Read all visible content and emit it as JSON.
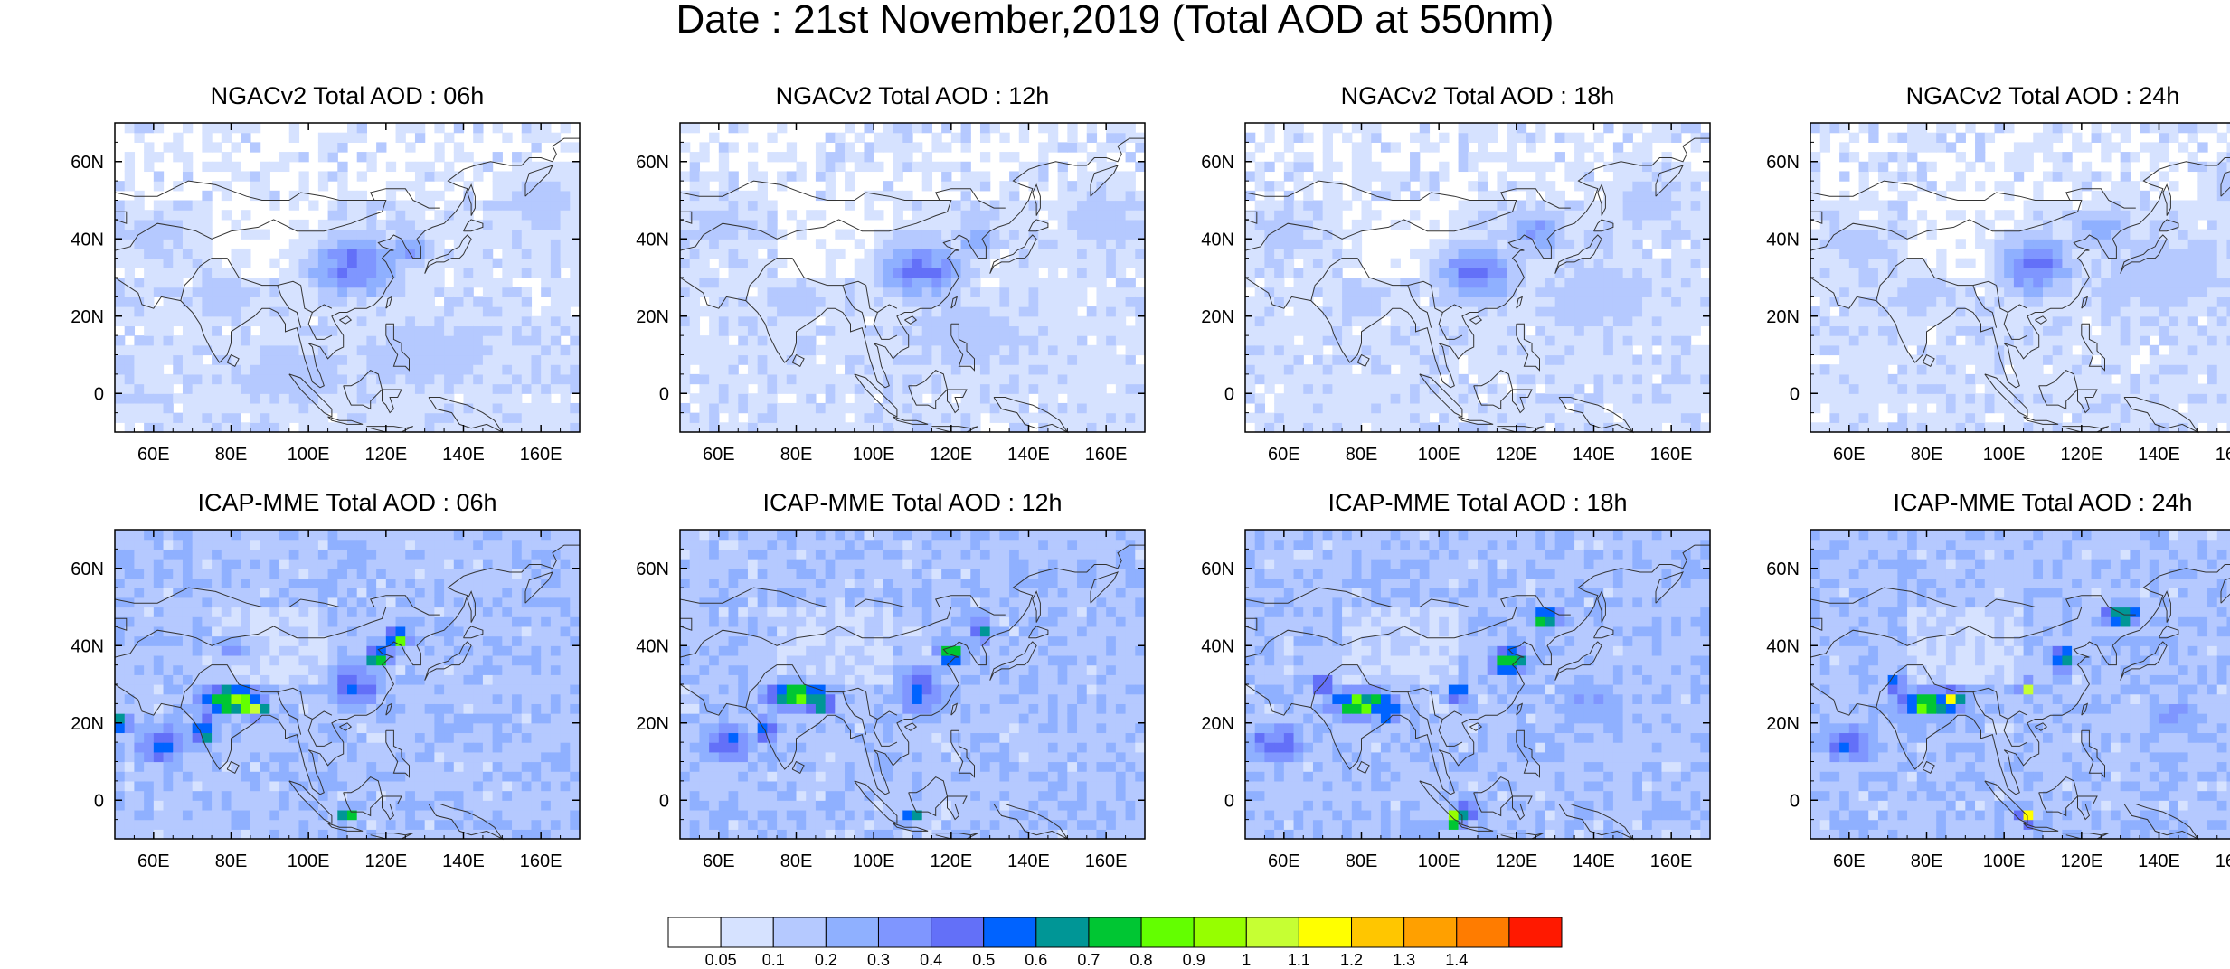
{
  "title": "Date : 21st November,2019 (Total AOD at 550nm)",
  "colors": {
    "levels": [
      "#ffffff",
      "#d6e2ff",
      "#b5c9ff",
      "#8fb0ff",
      "#7f96ff",
      "#6370f8",
      "#0063ff",
      "#009696",
      "#00c633",
      "#63ff00",
      "#96ff00",
      "#c6ff33",
      "#ffff00",
      "#ffc600",
      "#ffa000",
      "#ff7c00",
      "#ff1900"
    ],
    "coastline": "#333333"
  },
  "axes": {
    "lon_ticks": [
      "60E",
      "80E",
      "100E",
      "120E",
      "140E",
      "160E"
    ],
    "lat_ticks": [
      "60N",
      "40N",
      "20N",
      "0"
    ]
  },
  "colorbar": {
    "labels": [
      "0.05",
      "0.1",
      "0.2",
      "0.3",
      "0.4",
      "0.5",
      "0.6",
      "0.7",
      "0.8",
      "0.9",
      "1",
      "1.1",
      "1.2",
      "1.3",
      "1.4"
    ]
  },
  "chart_data": {
    "type": "heatmap",
    "variable": "Total AOD at 550nm",
    "xlim": [
      50,
      170
    ],
    "ylim": [
      -10,
      70
    ],
    "x_ticks": [
      60,
      80,
      100,
      120,
      140,
      160
    ],
    "y_ticks": [
      60,
      40,
      20,
      0
    ],
    "levels": [
      0.05,
      0.1,
      0.2,
      0.3,
      0.4,
      0.5,
      0.6,
      0.7,
      0.8,
      0.9,
      1,
      1.1,
      1.2,
      1.3,
      1.4
    ],
    "panels": [
      {
        "title": "NGACv2 Total AOD : 06h",
        "model": "NGACv2",
        "hour": 6,
        "background": 0.08,
        "hotspots": [
          {
            "lon": 112,
            "lat": 33,
            "value": 0.42,
            "rlon": 12,
            "rlat": 8
          },
          {
            "lon": 126,
            "lat": 38,
            "value": 0.3,
            "rlon": 6,
            "rlat": 5
          },
          {
            "lon": 78,
            "lat": 25,
            "value": 0.18,
            "rlon": 10,
            "rlat": 6
          },
          {
            "lon": 130,
            "lat": 10,
            "value": 0.15,
            "rlon": 25,
            "rlat": 12
          },
          {
            "lon": 60,
            "lat": 40,
            "value": 0.14,
            "rlon": 10,
            "rlat": 8
          },
          {
            "lon": 160,
            "lat": 50,
            "value": 0.14,
            "rlon": 12,
            "rlat": 10
          },
          {
            "lon": 95,
            "lat": 5,
            "value": 0.16,
            "rlon": 20,
            "rlat": 10
          }
        ]
      },
      {
        "title": "NGACv2 Total AOD : 12h",
        "model": "NGACv2",
        "hour": 12,
        "background": 0.08,
        "hotspots": [
          {
            "lon": 112,
            "lat": 32,
            "value": 0.4,
            "rlon": 11,
            "rlat": 8
          },
          {
            "lon": 127,
            "lat": 40,
            "value": 0.28,
            "rlon": 6,
            "rlat": 5
          },
          {
            "lon": 80,
            "lat": 24,
            "value": 0.17,
            "rlon": 9,
            "rlat": 6
          },
          {
            "lon": 125,
            "lat": 15,
            "value": 0.15,
            "rlon": 25,
            "rlat": 12
          },
          {
            "lon": 60,
            "lat": 45,
            "value": 0.14,
            "rlon": 12,
            "rlat": 8
          },
          {
            "lon": 160,
            "lat": 45,
            "value": 0.15,
            "rlon": 12,
            "rlat": 12
          }
        ]
      },
      {
        "title": "NGACv2 Total AOD : 18h",
        "model": "NGACv2",
        "hour": 18,
        "background": 0.08,
        "hotspots": [
          {
            "lon": 110,
            "lat": 31,
            "value": 0.42,
            "rlon": 10,
            "rlat": 8
          },
          {
            "lon": 125,
            "lat": 42,
            "value": 0.3,
            "rlon": 8,
            "rlat": 6
          },
          {
            "lon": 80,
            "lat": 24,
            "value": 0.17,
            "rlon": 9,
            "rlat": 6
          },
          {
            "lon": 140,
            "lat": 25,
            "value": 0.16,
            "rlon": 20,
            "rlat": 12
          },
          {
            "lon": 60,
            "lat": 42,
            "value": 0.14,
            "rlon": 12,
            "rlat": 8
          },
          {
            "lon": 155,
            "lat": 50,
            "value": 0.14,
            "rlon": 12,
            "rlat": 10
          }
        ]
      },
      {
        "title": "NGACv2 Total AOD : 24h",
        "model": "NGACv2",
        "hour": 24,
        "background": 0.08,
        "hotspots": [
          {
            "lon": 108,
            "lat": 33,
            "value": 0.45,
            "rlon": 9,
            "rlat": 8
          },
          {
            "lon": 125,
            "lat": 42,
            "value": 0.28,
            "rlon": 8,
            "rlat": 6
          },
          {
            "lon": 80,
            "lat": 26,
            "value": 0.16,
            "rlon": 9,
            "rlat": 6
          },
          {
            "lon": 140,
            "lat": 30,
            "value": 0.16,
            "rlon": 20,
            "rlat": 12
          },
          {
            "lon": 62,
            "lat": 38,
            "value": 0.14,
            "rlon": 12,
            "rlat": 8
          },
          {
            "lon": 160,
            "lat": 55,
            "value": 0.14,
            "rlon": 10,
            "rlat": 8
          }
        ]
      },
      {
        "title": "ICAP-MME Total AOD : 06h",
        "model": "ICAP-MME",
        "hour": 6,
        "background": 0.17,
        "hotspots": [
          {
            "lon": 80,
            "lat": 26,
            "value": 0.9,
            "rlon": 9,
            "rlat": 4
          },
          {
            "lon": 86,
            "lat": 24,
            "value": 1.0,
            "rlon": 4,
            "rlat": 3
          },
          {
            "lon": 73,
            "lat": 18,
            "value": 0.7,
            "rlon": 3,
            "rlat": 4
          },
          {
            "lon": 52,
            "lat": 20,
            "value": 0.85,
            "rlon": 3,
            "rlat": 2
          },
          {
            "lon": 62,
            "lat": 15,
            "value": 0.5,
            "rlon": 8,
            "rlat": 6
          },
          {
            "lon": 118,
            "lat": 37,
            "value": 0.75,
            "rlon": 4,
            "rlat": 3
          },
          {
            "lon": 123,
            "lat": 42,
            "value": 0.8,
            "rlon": 4,
            "rlat": 3
          },
          {
            "lon": 112,
            "lat": 30,
            "value": 0.5,
            "rlon": 8,
            "rlat": 8
          },
          {
            "lon": 110,
            "lat": -4,
            "value": 0.85,
            "rlon": 3,
            "rlat": 2
          },
          {
            "lon": 80,
            "lat": 40,
            "value": 0.3,
            "rlon": 10,
            "rlat": 4
          }
        ]
      },
      {
        "title": "ICAP-MME Total AOD : 12h",
        "model": "ICAP-MME",
        "hour": 12,
        "background": 0.17,
        "hotspots": [
          {
            "lon": 80,
            "lat": 27,
            "value": 0.85,
            "rlon": 9,
            "rlat": 4
          },
          {
            "lon": 86,
            "lat": 25,
            "value": 0.9,
            "rlon": 4,
            "rlat": 3
          },
          {
            "lon": 72,
            "lat": 19,
            "value": 0.6,
            "rlon": 3,
            "rlat": 4
          },
          {
            "lon": 62,
            "lat": 15,
            "value": 0.5,
            "rlon": 8,
            "rlat": 6
          },
          {
            "lon": 120,
            "lat": 38,
            "value": 0.8,
            "rlon": 4,
            "rlat": 3
          },
          {
            "lon": 128,
            "lat": 44,
            "value": 0.75,
            "rlon": 3,
            "rlat": 3
          },
          {
            "lon": 112,
            "lat": 28,
            "value": 0.5,
            "rlon": 7,
            "rlat": 8
          },
          {
            "lon": 110,
            "lat": -4,
            "value": 0.75,
            "rlon": 3,
            "rlat": 2
          },
          {
            "lon": 126,
            "lat": 47,
            "value": 0.4,
            "rlon": 5,
            "rlat": 3
          }
        ]
      },
      {
        "title": "ICAP-MME Total AOD : 18h",
        "model": "ICAP-MME",
        "hour": 18,
        "background": 0.17,
        "hotspots": [
          {
            "lon": 80,
            "lat": 25,
            "value": 0.85,
            "rlon": 9,
            "rlat": 4
          },
          {
            "lon": 70,
            "lat": 30,
            "value": 0.7,
            "rlon": 3,
            "rlat": 3
          },
          {
            "lon": 87,
            "lat": 23,
            "value": 0.75,
            "rlon": 4,
            "rlat": 3
          },
          {
            "lon": 58,
            "lat": 15,
            "value": 0.5,
            "rlon": 8,
            "rlat": 6
          },
          {
            "lon": 118,
            "lat": 36,
            "value": 0.8,
            "rlon": 5,
            "rlat": 4
          },
          {
            "lon": 128,
            "lat": 47,
            "value": 0.85,
            "rlon": 4,
            "rlat": 3
          },
          {
            "lon": 105,
            "lat": 28,
            "value": 0.65,
            "rlon": 3,
            "rlat": 3
          },
          {
            "lon": 104,
            "lat": -5,
            "value": 1.4,
            "rlon": 2,
            "rlat": 2
          },
          {
            "lon": 107,
            "lat": -3,
            "value": 0.6,
            "rlon": 5,
            "rlat": 3
          },
          {
            "lon": 140,
            "lat": 25,
            "value": 0.3,
            "rlon": 12,
            "rlat": 8
          }
        ]
      },
      {
        "title": "ICAP-MME Total AOD : 24h",
        "model": "ICAP-MME",
        "hour": 24,
        "background": 0.17,
        "hotspots": [
          {
            "lon": 80,
            "lat": 25,
            "value": 0.8,
            "rlon": 9,
            "rlat": 4
          },
          {
            "lon": 87,
            "lat": 26,
            "value": 1.05,
            "rlon": 3,
            "rlat": 3
          },
          {
            "lon": 72,
            "lat": 30,
            "value": 0.65,
            "rlon": 3,
            "rlat": 3
          },
          {
            "lon": 60,
            "lat": 15,
            "value": 0.5,
            "rlon": 8,
            "rlat": 6
          },
          {
            "lon": 106,
            "lat": 29,
            "value": 1.3,
            "rlon": 2,
            "rlat": 2
          },
          {
            "lon": 115,
            "lat": 37,
            "value": 0.7,
            "rlon": 4,
            "rlat": 4
          },
          {
            "lon": 130,
            "lat": 48,
            "value": 0.85,
            "rlon": 5,
            "rlat": 3
          },
          {
            "lon": 106,
            "lat": -4,
            "value": 1.35,
            "rlon": 2,
            "rlat": 2
          },
          {
            "lon": 145,
            "lat": 22,
            "value": 0.3,
            "rlon": 12,
            "rlat": 8
          }
        ]
      }
    ]
  }
}
